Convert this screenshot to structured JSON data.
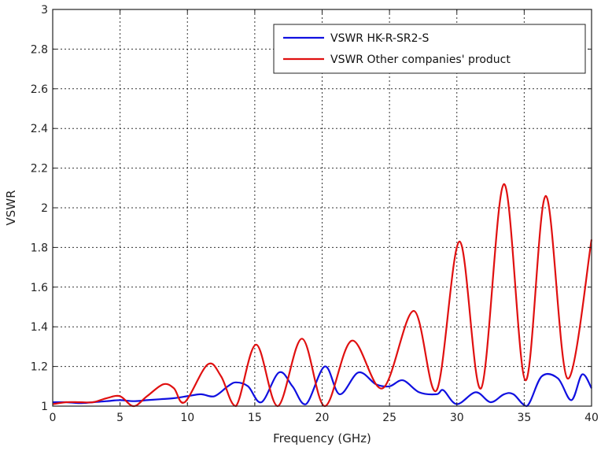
{
  "chart_data": {
    "type": "line",
    "xlabel": "Frequency (GHz)",
    "ylabel": "VSWR",
    "xlim": [
      0,
      40
    ],
    "ylim": [
      1,
      3
    ],
    "xticks": [
      0,
      5,
      10,
      15,
      20,
      25,
      30,
      35,
      40
    ],
    "yticks": [
      1,
      1.2,
      1.4,
      1.6,
      1.8,
      2,
      2.2,
      2.4,
      2.6,
      2.8,
      3
    ],
    "ytick_labels": [
      "1",
      "1.2",
      "1.4",
      "1.6",
      "1.8",
      "2",
      "2.2",
      "2.4",
      "2.6",
      "2.8",
      "3"
    ],
    "grid": true,
    "grid_style": "dotted",
    "legend_position": "top-right",
    "series": [
      {
        "name": "VSWR HK-R-SR2-S",
        "color": "#1010e0",
        "x": [
          0,
          1,
          2,
          3,
          4,
          5,
          6,
          7,
          8,
          9,
          10,
          11,
          12,
          13,
          13.6,
          14.5,
          15.5,
          16.8,
          17.8,
          18.8,
          20.2,
          21.3,
          22.7,
          24,
          25,
          26,
          27.2,
          28.5,
          29,
          30,
          31.4,
          32.5,
          33.5,
          34.2,
          35.2,
          36.3,
          37.5,
          38.5,
          39.3,
          40
        ],
        "values": [
          1.02,
          1.02,
          1.015,
          1.02,
          1.025,
          1.03,
          1.025,
          1.03,
          1.035,
          1.04,
          1.05,
          1.06,
          1.05,
          1.1,
          1.12,
          1.1,
          1.02,
          1.17,
          1.1,
          1.01,
          1.2,
          1.06,
          1.17,
          1.11,
          1.1,
          1.13,
          1.07,
          1.06,
          1.08,
          1.01,
          1.07,
          1.02,
          1.06,
          1.06,
          1.0,
          1.15,
          1.14,
          1.03,
          1.16,
          1.09
        ]
      },
      {
        "name": "VSWR Other companies' product",
        "color": "#e01010",
        "x": [
          0,
          1,
          2,
          3,
          4,
          5,
          6,
          7,
          8.2,
          9,
          9.8,
          11.5,
          12.5,
          13.6,
          15.1,
          16.7,
          18.5,
          20.2,
          22.2,
          24.5,
          26.8,
          28.5,
          30.2,
          31.8,
          33.5,
          35.1,
          36.6,
          38.2,
          40
        ],
        "values": [
          1.01,
          1.02,
          1.02,
          1.02,
          1.04,
          1.05,
          1.0,
          1.05,
          1.11,
          1.09,
          1.02,
          1.21,
          1.15,
          1.0,
          1.31,
          1.0,
          1.34,
          1.0,
          1.33,
          1.09,
          1.48,
          1.08,
          1.83,
          1.09,
          2.12,
          1.13,
          2.06,
          1.14,
          1.84
        ]
      }
    ]
  }
}
